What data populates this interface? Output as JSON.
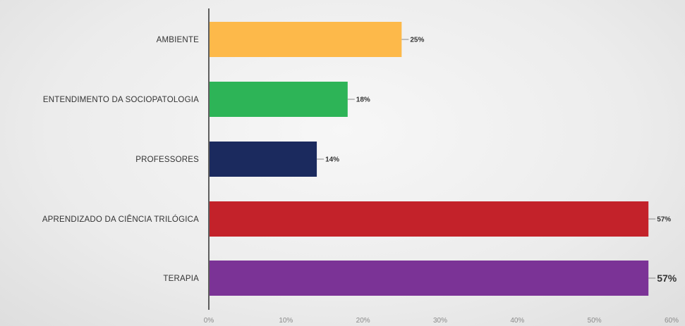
{
  "chart_data": {
    "type": "bar",
    "orientation": "horizontal",
    "title": "",
    "xlabel": "",
    "ylabel": "",
    "categories": [
      "AMBIENTE",
      "ENTENDIMENTO DA SOCIOPATOLOGIA",
      "PROFESSORES",
      "APRENDIZADO DA CIÊNCIA TRILÓGICA",
      "TERAPIA"
    ],
    "values": [
      25,
      18,
      14,
      57,
      57
    ],
    "data_labels": [
      "25%",
      "18%",
      "14%",
      "57%",
      "57%"
    ],
    "colors": [
      "#FDB94A",
      "#2DB457",
      "#1B2A5E",
      "#C3222A",
      "#7B3396"
    ],
    "xlim": [
      0,
      60
    ],
    "x_ticks": [
      0,
      10,
      20,
      30,
      40,
      50,
      60
    ],
    "x_tick_labels": [
      "0%",
      "10%",
      "20%",
      "30%",
      "40%",
      "50%",
      "60%"
    ],
    "grid": false,
    "legend": "none"
  }
}
